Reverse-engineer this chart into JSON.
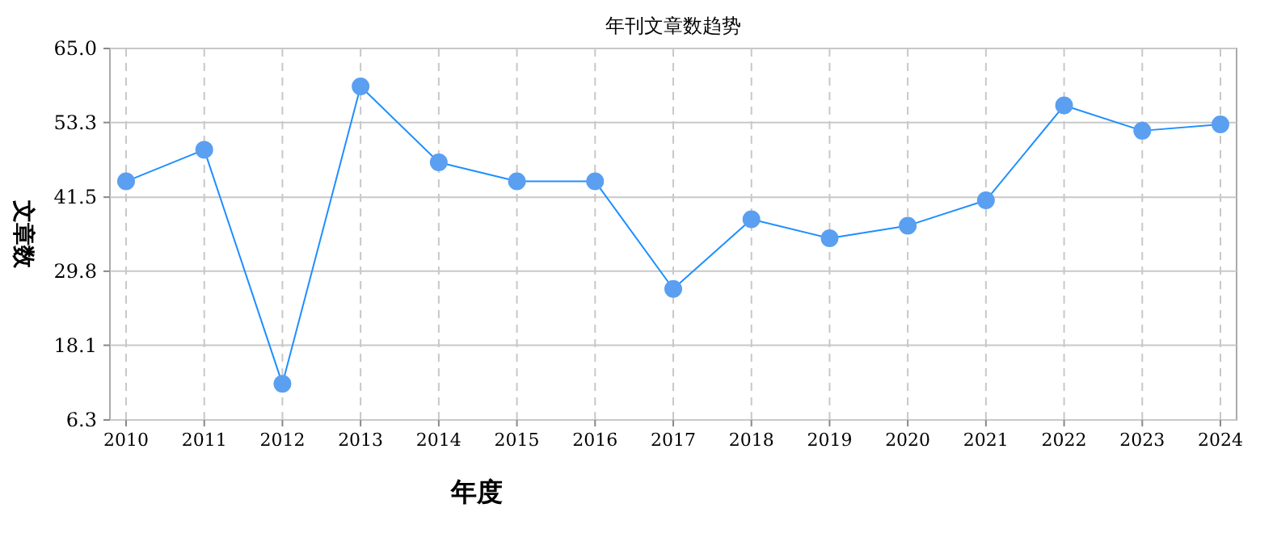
{
  "chart_data": {
    "type": "line",
    "title": "年刊文章数趋势",
    "xlabel": "年度",
    "ylabel": "文章数",
    "categories": [
      "2010",
      "2011",
      "2012",
      "2013",
      "2014",
      "2015",
      "2016",
      "2017",
      "2018",
      "2019",
      "2020",
      "2021",
      "2022",
      "2023",
      "2024"
    ],
    "series": [
      {
        "color": "#1e8fff",
        "values": [
          44,
          49,
          12,
          59,
          47,
          44,
          44,
          27,
          38,
          35,
          37,
          41,
          56,
          52,
          53
        ]
      }
    ],
    "ylim": [
      6.3,
      65
    ],
    "yticks": [
      6.3,
      18.1,
      29.8,
      41.5,
      53.3,
      {
        "value": 65,
        "label": "65.0"
      }
    ],
    "grid": true,
    "marker": "circle",
    "line_style": "solid"
  }
}
